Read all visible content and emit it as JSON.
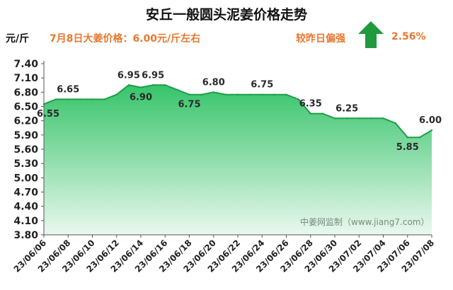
{
  "header": {
    "title": "安丘一般圆头泥姜价格走势",
    "unit": "元/斤",
    "price_note": "7月8日大姜价格：6.00元/斤左右",
    "change_label": "较昨日偏强",
    "change_value": "2.56%",
    "trend_icon": "up-arrow-icon"
  },
  "watermark": "中姜网监制（www.jiang7.com）",
  "colors": {
    "line": "#1e9d4a",
    "fill_top": "#36c46a",
    "fill_bottom": "#eaf8ee",
    "arrow": "#1f9a3c",
    "accent_text": "#e8772e"
  },
  "chart_data": {
    "type": "area",
    "title": "安丘一般圆头泥姜价格走势",
    "ylabel": "元/斤",
    "ylim": [
      3.8,
      7.4
    ],
    "yticks": [
      "7.40",
      "7.10",
      "6.80",
      "6.50",
      "6.20",
      "5.90",
      "5.60",
      "5.30",
      "5.00",
      "4.70",
      "4.40",
      "4.10",
      "3.80"
    ],
    "x": [
      "23/06/06",
      "23/06/07",
      "23/06/08",
      "23/06/09",
      "23/06/10",
      "23/06/11",
      "23/06/12",
      "23/06/13",
      "23/06/14",
      "23/06/15",
      "23/06/16",
      "23/06/17",
      "23/06/18",
      "23/06/19",
      "23/06/20",
      "23/06/21",
      "23/06/22",
      "23/06/23",
      "23/06/24",
      "23/06/25",
      "23/06/26",
      "23/06/27",
      "23/06/28",
      "23/06/29",
      "23/06/30",
      "23/07/01",
      "23/07/02",
      "23/07/03",
      "23/07/04",
      "23/07/05",
      "23/07/06",
      "23/07/07",
      "23/07/08"
    ],
    "xtick_labels": [
      "23/06/06",
      "23/06/08",
      "23/06/10",
      "23/06/12",
      "23/06/14",
      "23/06/16",
      "23/06/18",
      "23/06/20",
      "23/06/22",
      "23/06/24",
      "23/06/26",
      "23/06/28",
      "23/06/30",
      "23/07/02",
      "23/07/04",
      "23/07/06",
      "23/07/08"
    ],
    "values": [
      6.55,
      6.65,
      6.65,
      6.65,
      6.65,
      6.65,
      6.75,
      6.95,
      6.9,
      6.95,
      6.95,
      6.85,
      6.75,
      6.75,
      6.8,
      6.75,
      6.75,
      6.75,
      6.75,
      6.75,
      6.75,
      6.65,
      6.35,
      6.35,
      6.25,
      6.25,
      6.25,
      6.25,
      6.25,
      6.15,
      5.85,
      5.85,
      6.0
    ],
    "data_labels": [
      {
        "index": 0,
        "text": "6.55",
        "pos": "below"
      },
      {
        "index": 2,
        "text": "6.65",
        "pos": "above"
      },
      {
        "index": 7,
        "text": "6.95",
        "pos": "above"
      },
      {
        "index": 8,
        "text": "6.90",
        "pos": "below"
      },
      {
        "index": 9,
        "text": "6.95",
        "pos": "above"
      },
      {
        "index": 12,
        "text": "6.75",
        "pos": "below"
      },
      {
        "index": 14,
        "text": "6.80",
        "pos": "above"
      },
      {
        "index": 18,
        "text": "6.75",
        "pos": "above"
      },
      {
        "index": 22,
        "text": "6.35",
        "pos": "above"
      },
      {
        "index": 25,
        "text": "6.25",
        "pos": "above"
      },
      {
        "index": 30,
        "text": "5.85",
        "pos": "below"
      },
      {
        "index": 32,
        "text": "6.00",
        "pos": "above"
      }
    ],
    "grid": false
  }
}
